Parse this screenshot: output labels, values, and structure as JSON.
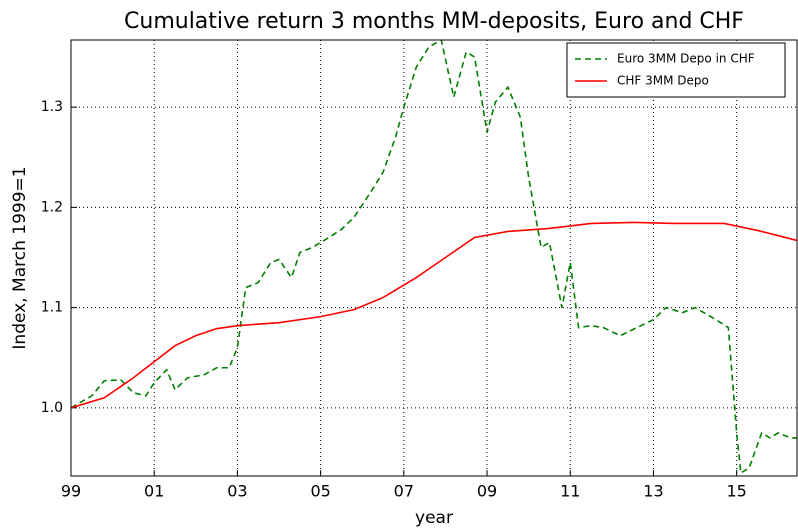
{
  "chart_data": {
    "type": "line",
    "title": "Cumulative return 3 months MM-deposits, Euro and CHF",
    "xlabel": "year",
    "ylabel": "Index, March 1999=1",
    "xlim": [
      1999,
      2016.45
    ],
    "ylim": [
      0.932,
      1.367
    ],
    "xticks": [
      {
        "value": 1999,
        "label": "99"
      },
      {
        "value": 2001,
        "label": "01"
      },
      {
        "value": 2003,
        "label": "03"
      },
      {
        "value": 2005,
        "label": "05"
      },
      {
        "value": 2007,
        "label": "07"
      },
      {
        "value": 2009,
        "label": "09"
      },
      {
        "value": 2011,
        "label": "11"
      },
      {
        "value": 2013,
        "label": "13"
      },
      {
        "value": 2015,
        "label": "15"
      }
    ],
    "yticks": [
      {
        "value": 1,
        "label": "1.0"
      },
      1.1,
      1.2,
      1.3
    ],
    "grid": true,
    "legend": "upper right",
    "series": [
      {
        "name": "Euro 3MM Depo in CHF",
        "color": "#008000",
        "dash": true,
        "x": [
          1999.0,
          1999.5,
          1999.8,
          2000.2,
          2000.5,
          2000.8,
          2001.0,
          2001.3,
          2001.5,
          2001.8,
          2002.2,
          2002.5,
          2002.8,
          2003.0,
          2003.2,
          2003.5,
          2003.8,
          2004.0,
          2004.3,
          2004.5,
          2004.8,
          2005.2,
          2005.5,
          2005.8,
          2006.2,
          2006.5,
          2006.8,
          2007.0,
          2007.3,
          2007.6,
          2007.9,
          2008.2,
          2008.5,
          2008.7,
          2009.0,
          2009.2,
          2009.5,
          2009.8,
          2010.0,
          2010.3,
          2010.5,
          2010.8,
          2011.0,
          2011.2,
          2011.5,
          2011.8,
          2012.2,
          2012.6,
          2013.0,
          2013.3,
          2013.7,
          2014.0,
          2014.5,
          2014.8,
          2015.0,
          2015.1,
          2015.3,
          2015.6,
          2015.8,
          2016.0,
          2016.3,
          2016.45
        ],
        "values": [
          1.0,
          1.012,
          1.027,
          1.028,
          1.015,
          1.012,
          1.025,
          1.038,
          1.018,
          1.03,
          1.033,
          1.04,
          1.04,
          1.06,
          1.12,
          1.125,
          1.145,
          1.148,
          1.13,
          1.155,
          1.16,
          1.17,
          1.178,
          1.19,
          1.215,
          1.235,
          1.27,
          1.3,
          1.34,
          1.36,
          1.367,
          1.31,
          1.355,
          1.35,
          1.275,
          1.305,
          1.32,
          1.29,
          1.23,
          1.16,
          1.165,
          1.1,
          1.145,
          1.08,
          1.082,
          1.08,
          1.072,
          1.08,
          1.088,
          1.1,
          1.095,
          1.1,
          1.088,
          1.08,
          0.975,
          0.935,
          0.94,
          0.975,
          0.97,
          0.975,
          0.97,
          0.97
        ]
      },
      {
        "name": "CHF 3MM Depo",
        "color": "#ff0000",
        "dash": false,
        "x": [
          1999.0,
          1999.8,
          2000.5,
          2001.5,
          2002.0,
          2002.5,
          2003.0,
          2004.0,
          2005.0,
          2005.8,
          2006.5,
          2007.3,
          2008.0,
          2008.7,
          2009.5,
          2010.5,
          2011.5,
          2012.5,
          2013.5,
          2014.7,
          2015.5,
          2016.45
        ],
        "values": [
          1.0,
          1.01,
          1.03,
          1.062,
          1.072,
          1.079,
          1.082,
          1.085,
          1.091,
          1.098,
          1.11,
          1.13,
          1.15,
          1.17,
          1.176,
          1.179,
          1.184,
          1.185,
          1.184,
          1.184,
          1.177,
          1.167
        ]
      }
    ]
  }
}
